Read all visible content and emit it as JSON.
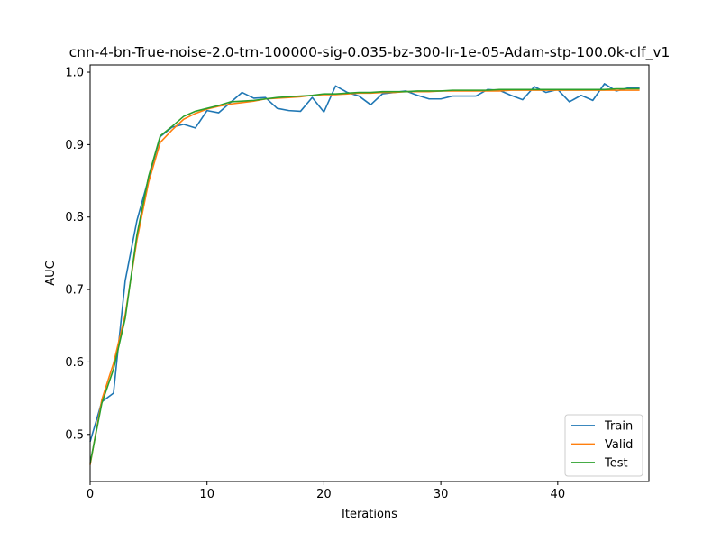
{
  "chart_data": {
    "type": "line",
    "title": "cnn-4-bn-True-noise-2.0-trn-100000-sig-0.035-bz-300-lr-1e-05-Adam-stp-100.0k-clf_v1",
    "xlabel": "Iterations",
    "ylabel": "AUC",
    "xlim": [
      0,
      47.8
    ],
    "ylim": [
      0.435,
      1.01
    ],
    "xticks": [
      0,
      10,
      20,
      30,
      40
    ],
    "yticks": [
      0.5,
      0.6,
      0.7,
      0.8,
      0.9,
      1.0
    ],
    "ytick_labels": [
      "0.5",
      "0.6",
      "0.7",
      "0.8",
      "0.9",
      "1.0"
    ],
    "grid": false,
    "legend_position": "bottom-right",
    "series": [
      {
        "name": "Train",
        "color": "#1f77b4",
        "values": [
          0.49,
          0.545,
          0.557,
          0.712,
          0.795,
          0.853,
          0.911,
          0.924,
          0.928,
          0.923,
          0.947,
          0.944,
          0.958,
          0.972,
          0.964,
          0.965,
          0.95,
          0.947,
          0.946,
          0.965,
          0.945,
          0.981,
          0.972,
          0.967,
          0.955,
          0.97,
          0.972,
          0.974,
          0.968,
          0.963,
          0.963,
          0.967,
          0.967,
          0.967,
          0.976,
          0.975,
          0.968,
          0.962,
          0.98,
          0.972,
          0.976,
          0.959,
          0.968,
          0.961,
          0.984,
          0.974,
          0.978,
          0.978
        ]
      },
      {
        "name": "Valid",
        "color": "#ff7f0e",
        "values": [
          0.458,
          0.548,
          0.598,
          0.665,
          0.768,
          0.848,
          0.903,
          0.92,
          0.935,
          0.943,
          0.949,
          0.953,
          0.956,
          0.958,
          0.96,
          0.963,
          0.964,
          0.965,
          0.966,
          0.968,
          0.969,
          0.969,
          0.97,
          0.971,
          0.971,
          0.972,
          0.972,
          0.973,
          0.973,
          0.973,
          0.974,
          0.974,
          0.974,
          0.974,
          0.974,
          0.974,
          0.975,
          0.975,
          0.975,
          0.975,
          0.975,
          0.975,
          0.975,
          0.975,
          0.975,
          0.975,
          0.975,
          0.975
        ]
      },
      {
        "name": "Test",
        "color": "#2ca02c",
        "values": [
          0.46,
          0.543,
          0.59,
          0.66,
          0.775,
          0.856,
          0.912,
          0.925,
          0.939,
          0.946,
          0.95,
          0.954,
          0.959,
          0.96,
          0.961,
          0.963,
          0.965,
          0.966,
          0.967,
          0.968,
          0.97,
          0.97,
          0.971,
          0.972,
          0.972,
          0.973,
          0.973,
          0.973,
          0.974,
          0.974,
          0.974,
          0.975,
          0.975,
          0.975,
          0.975,
          0.976,
          0.976,
          0.976,
          0.976,
          0.976,
          0.976,
          0.976,
          0.976,
          0.976,
          0.976,
          0.977,
          0.977,
          0.977
        ]
      }
    ]
  }
}
